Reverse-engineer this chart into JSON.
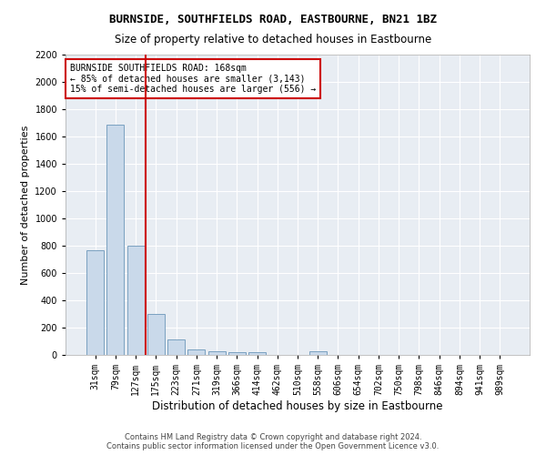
{
  "title": "BURNSIDE, SOUTHFIELDS ROAD, EASTBOURNE, BN21 1BZ",
  "subtitle": "Size of property relative to detached houses in Eastbourne",
  "xlabel": "Distribution of detached houses by size in Eastbourne",
  "ylabel": "Number of detached properties",
  "categories": [
    "31sqm",
    "79sqm",
    "127sqm",
    "175sqm",
    "223sqm",
    "271sqm",
    "319sqm",
    "366sqm",
    "414sqm",
    "462sqm",
    "510sqm",
    "558sqm",
    "606sqm",
    "654sqm",
    "702sqm",
    "750sqm",
    "798sqm",
    "846sqm",
    "894sqm",
    "941sqm",
    "989sqm"
  ],
  "values": [
    770,
    1690,
    800,
    300,
    115,
    43,
    30,
    22,
    20,
    0,
    0,
    30,
    0,
    0,
    0,
    0,
    0,
    0,
    0,
    0,
    0
  ],
  "bar_color": "#c9d9ea",
  "bar_edge_color": "#7aa0c0",
  "vline_color": "#cc0000",
  "annotation_text": "BURNSIDE SOUTHFIELDS ROAD: 168sqm\n← 85% of detached houses are smaller (3,143)\n15% of semi-detached houses are larger (556) →",
  "annotation_box_color": "#ffffff",
  "annotation_box_edge_color": "#cc0000",
  "ylim": [
    0,
    2200
  ],
  "yticks": [
    0,
    200,
    400,
    600,
    800,
    1000,
    1200,
    1400,
    1600,
    1800,
    2000,
    2200
  ],
  "background_color": "#e8edf3",
  "grid_color": "#ffffff",
  "footer": "Contains HM Land Registry data © Crown copyright and database right 2024.\nContains public sector information licensed under the Open Government Licence v3.0.",
  "title_fontsize": 9,
  "subtitle_fontsize": 8.5,
  "xlabel_fontsize": 8.5,
  "ylabel_fontsize": 8,
  "tick_fontsize": 7,
  "annotation_fontsize": 7,
  "footer_fontsize": 6
}
